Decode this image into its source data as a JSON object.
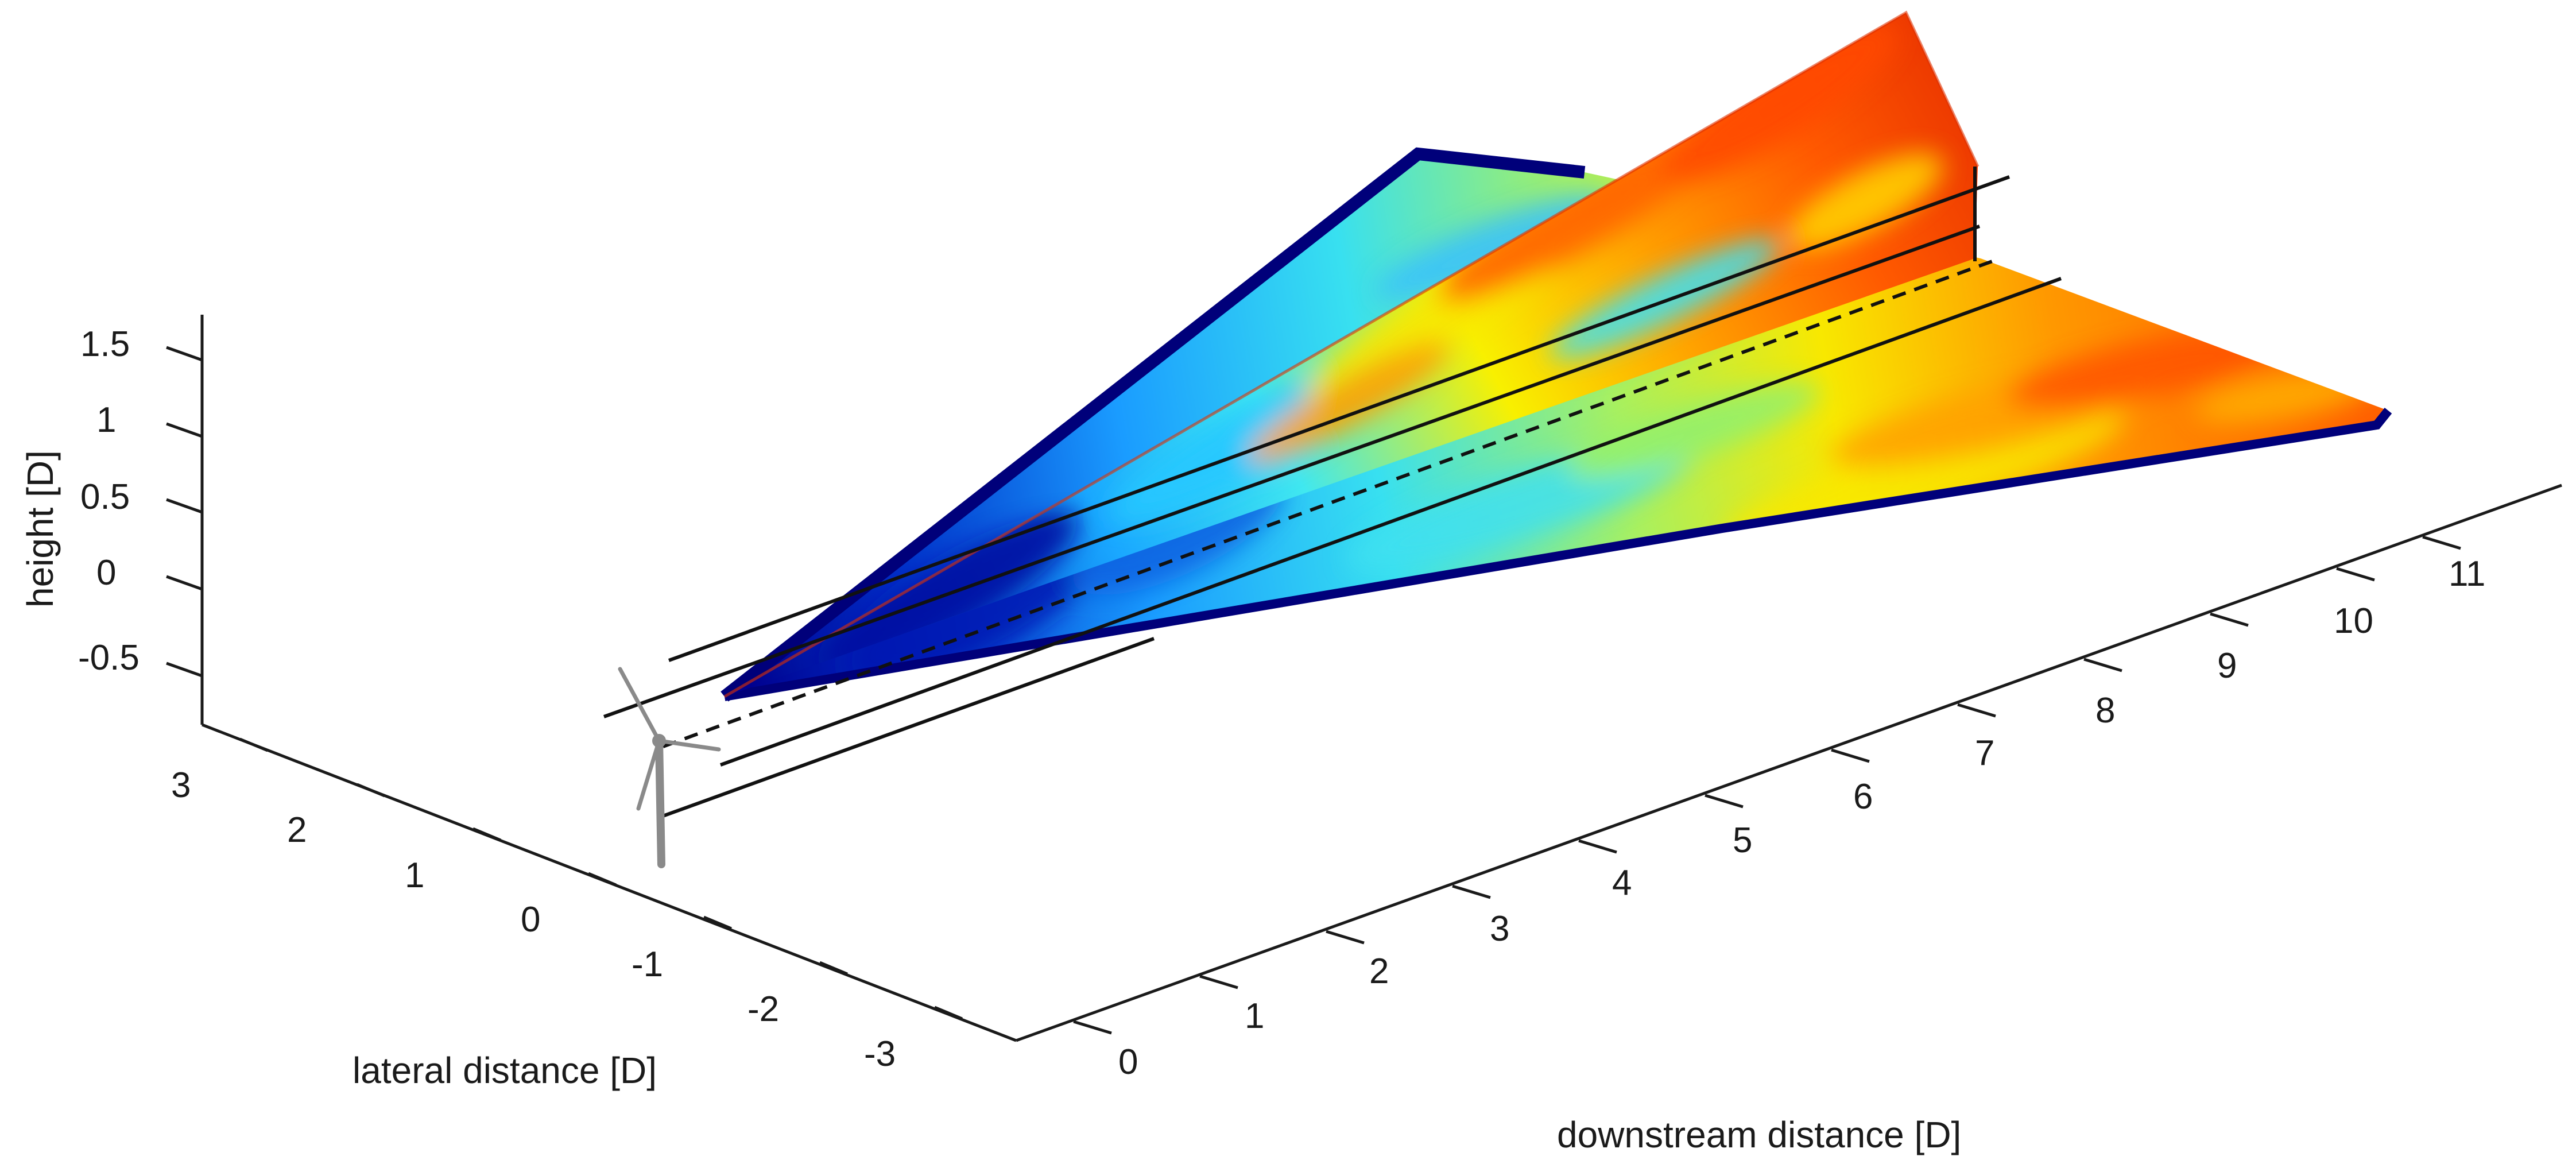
{
  "chart_data": {
    "type": "3d-surface",
    "axes": {
      "x": {
        "label": "downstream distance [D]",
        "ticks": [
          0,
          1,
          2,
          3,
          4,
          5,
          6,
          7,
          8,
          9,
          10,
          11
        ],
        "range": [
          -0.5,
          11.5
        ]
      },
      "y": {
        "label": "lateral distance [D]",
        "ticks": [
          3,
          2,
          1,
          0,
          -1,
          -2,
          -3
        ],
        "range": [
          -3.5,
          3.5
        ]
      },
      "z": {
        "label": "height [D]",
        "ticks": [
          1.5,
          1,
          0.5,
          0,
          -0.5
        ],
        "range": [
          -0.75,
          1.75
        ]
      }
    },
    "colormap": "jet",
    "colors": {
      "low": "#00008f",
      "mid_low": "#0090ff",
      "mid": "#30f0f0",
      "mid_high": "#f0f000",
      "high": "#ff4000",
      "max": "#c00000"
    },
    "turbine": {
      "x": 0,
      "y": 0,
      "z": 0,
      "icon": "wind-turbine-icon"
    },
    "reference_lines": [
      {
        "style": "solid",
        "y": 0.5,
        "z": 0.5
      },
      {
        "style": "dashed",
        "y": 0,
        "z": 0
      },
      {
        "style": "solid",
        "y": -0.5,
        "z": -0.5
      },
      {
        "style": "solid",
        "y": -1,
        "z": -1
      }
    ],
    "grid": false,
    "legend": "none",
    "title": ""
  }
}
